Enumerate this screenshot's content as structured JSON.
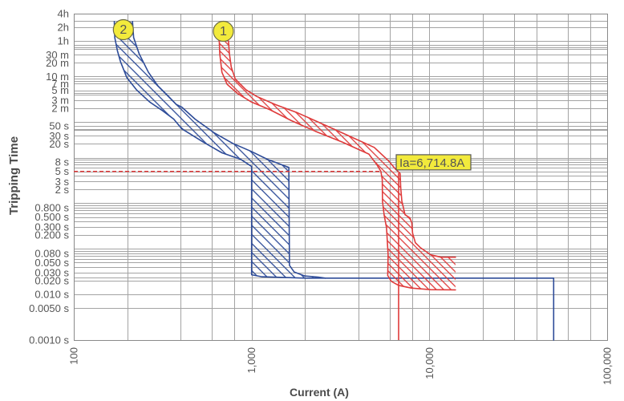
{
  "chart_data": {
    "type": "line",
    "title": "",
    "xlabel": "Current (A)",
    "ylabel": "Tripping Time",
    "xscale": "log",
    "yscale": "log",
    "xlim": [
      100,
      100000
    ],
    "ylim": [
      0.001,
      14400
    ],
    "grid": true,
    "legend": null,
    "colors": {
      "grid": "#a3a3a3",
      "frame": "#8a8a8a",
      "marker_fill": "#f2ea3c",
      "marker_stroke": "#6b6b45"
    },
    "x_ticks": [
      {
        "value": 100,
        "label": "100"
      },
      {
        "value": 1000,
        "label": "1,000"
      },
      {
        "value": 10000,
        "label": "10,000"
      },
      {
        "value": 100000,
        "label": "100,000"
      }
    ],
    "y_ticks": [
      {
        "value": 14400,
        "label": "4h"
      },
      {
        "value": 7200,
        "label": "2h"
      },
      {
        "value": 3600,
        "label": "1h"
      },
      {
        "value": 1800,
        "label": "30 m"
      },
      {
        "value": 1200,
        "label": "20 m"
      },
      {
        "value": 600,
        "label": "10 m"
      },
      {
        "value": 420,
        "label": "7 m"
      },
      {
        "value": 300,
        "label": "5 m"
      },
      {
        "value": 180,
        "label": "3 m"
      },
      {
        "value": 120,
        "label": "2 m"
      },
      {
        "value": 50,
        "label": "50 s"
      },
      {
        "value": 30,
        "label": "30 s"
      },
      {
        "value": 20,
        "label": "20 s"
      },
      {
        "value": 8,
        "label": "8 s"
      },
      {
        "value": 5,
        "label": "5 s"
      },
      {
        "value": 3,
        "label": "3 s"
      },
      {
        "value": 2,
        "label": "2 s"
      },
      {
        "value": 0.8,
        "label": "0.800 s"
      },
      {
        "value": 0.5,
        "label": "0.500 s"
      },
      {
        "value": 0.3,
        "label": "0.300 s"
      },
      {
        "value": 0.2,
        "label": "0.200 s"
      },
      {
        "value": 0.08,
        "label": "0.080 s"
      },
      {
        "value": 0.05,
        "label": "0.050 s"
      },
      {
        "value": 0.03,
        "label": "0.030 s"
      },
      {
        "value": 0.02,
        "label": "0.020 s"
      },
      {
        "value": 0.01,
        "label": "0.010 s"
      },
      {
        "value": 0.005,
        "label": "0.0050 s"
      },
      {
        "value": 0.001,
        "label": "0.0010 s"
      }
    ],
    "x_gridlines": [
      200,
      400,
      600,
      800,
      1000,
      2000,
      4000,
      6000,
      8000,
      10000,
      20000,
      30000,
      40000,
      60000,
      80000
    ],
    "y_gridlines": [
      10000,
      7200,
      3600,
      3000,
      2600,
      2400,
      1800,
      1200,
      600,
      550,
      480,
      420,
      300,
      260,
      240,
      180,
      120,
      60,
      50,
      42,
      40,
      30,
      20,
      10,
      9,
      8,
      7,
      6,
      5,
      4,
      3,
      2,
      1,
      0.9,
      0.8,
      0.7,
      0.6,
      0.5,
      0.4,
      0.3,
      0.2,
      0.1,
      0.09,
      0.08,
      0.07,
      0.06,
      0.05,
      0.04,
      0.03,
      0.024,
      0.02,
      0.01,
      0.005
    ],
    "series": [
      {
        "name": "2",
        "color": "#2d4b98",
        "hatched": true,
        "hatch_spacing": 8,
        "lower_current_edge": [
          [
            169,
            9700
          ],
          [
            170,
            4300
          ],
          [
            176,
            2200
          ],
          [
            183,
            1280
          ],
          [
            199,
            566
          ],
          [
            225,
            308
          ],
          [
            267,
            167
          ],
          [
            317,
            106
          ],
          [
            365,
            70
          ],
          [
            405,
            43
          ],
          [
            534,
            22
          ],
          [
            681,
            12.8
          ],
          [
            868,
            9.2
          ],
          [
            1000,
            6.4
          ],
          [
            1000,
            0.027
          ],
          [
            1145,
            0.0244
          ],
          [
            2000,
            0.0228
          ],
          [
            2600,
            0.0228
          ]
        ],
        "upper_current_edge": [
          [
            214,
            9700
          ],
          [
            217,
            4300
          ],
          [
            233,
            1910
          ],
          [
            263,
            743
          ],
          [
            297,
            377
          ],
          [
            341,
            220
          ],
          [
            378,
            146
          ],
          [
            405,
            128
          ],
          [
            481,
            70
          ],
          [
            614,
            35.4
          ],
          [
            782,
            20.6
          ],
          [
            996,
            13.7
          ],
          [
            1226,
            9.2
          ],
          [
            1620,
            6.1
          ],
          [
            1634,
            0.0436
          ],
          [
            1734,
            0.0311
          ],
          [
            1991,
            0.0254
          ],
          [
            2368,
            0.024
          ],
          [
            2600,
            0.0228
          ]
        ],
        "tail": [
          [
            2600,
            0.0228
          ],
          [
            50000,
            0.0228
          ],
          [
            50000,
            0.001
          ]
        ]
      },
      {
        "name": "1",
        "color": "#df3b3b",
        "hatched": true,
        "hatch_spacing": 6.5,
        "lower_current_edge": [
          [
            651,
            4040
          ],
          [
            658,
            3520
          ],
          [
            662,
            1910
          ],
          [
            681,
            743
          ],
          [
            729,
            404
          ],
          [
            838,
            251
          ],
          [
            996,
            167
          ],
          [
            1270,
            112
          ],
          [
            1673,
            65
          ],
          [
            2286,
            37.9
          ],
          [
            3234,
            22
          ],
          [
            4569,
            12
          ],
          [
            5070,
            7
          ],
          [
            5340,
            5
          ],
          [
            5435,
            3.3
          ],
          [
            5452,
            1.1
          ],
          [
            5566,
            0.56
          ],
          [
            5742,
            0.29
          ],
          [
            5863,
            0.074
          ],
          [
            5833,
            0.026
          ],
          [
            6112,
            0.0194
          ],
          [
            6711,
            0.0158
          ],
          [
            7925,
            0.0138
          ],
          [
            10167,
            0.0127
          ],
          [
            14030,
            0.0126
          ]
        ],
        "upper_current_edge": [
          [
            735,
            4040
          ],
          [
            742,
            3520
          ],
          [
            750,
            1910
          ],
          [
            768,
            975
          ],
          [
            809,
            530
          ],
          [
            930,
            308
          ],
          [
            1068,
            220
          ],
          [
            1360,
            146
          ],
          [
            1794,
            98
          ],
          [
            2450,
            57
          ],
          [
            3463,
            31
          ],
          [
            4898,
            16.8
          ],
          [
            5900,
            8.5
          ],
          [
            6450,
            5.6
          ],
          [
            6850,
            4.5
          ],
          [
            6900,
            2.2
          ],
          [
            7000,
            1.12
          ],
          [
            7300,
            0.56
          ],
          [
            7760,
            0.48
          ],
          [
            7964,
            0.375
          ],
          [
            8048,
            0.221
          ],
          [
            8346,
            0.136
          ],
          [
            8884,
            0.107
          ],
          [
            10167,
            0.074
          ],
          [
            11637,
            0.0655
          ],
          [
            14030,
            0.0655
          ]
        ],
        "tail": null
      }
    ],
    "annotations": [
      {
        "type": "hline",
        "name": "trip-time-5s-dashed-line",
        "time": 5,
        "x_range": [
          100,
          5340
        ],
        "color": "#df3b3b",
        "dashed": true
      },
      {
        "type": "vline",
        "name": "ia-current-line",
        "current": 6714.8,
        "y_range": [
          4.6,
          0.001
        ],
        "color": "#df3b3b"
      },
      {
        "type": "marker",
        "name": "curve-2-marker",
        "label": "2",
        "current": 190,
        "time": 6400
      },
      {
        "type": "marker",
        "name": "curve-1-marker",
        "label": "1",
        "current": 694,
        "time": 5900
      },
      {
        "type": "callout",
        "name": "ia-value-label",
        "text": "Ia=6,714.8A",
        "value": 6714.8,
        "unit": "A",
        "current": 6510,
        "time": 11.6
      }
    ]
  }
}
